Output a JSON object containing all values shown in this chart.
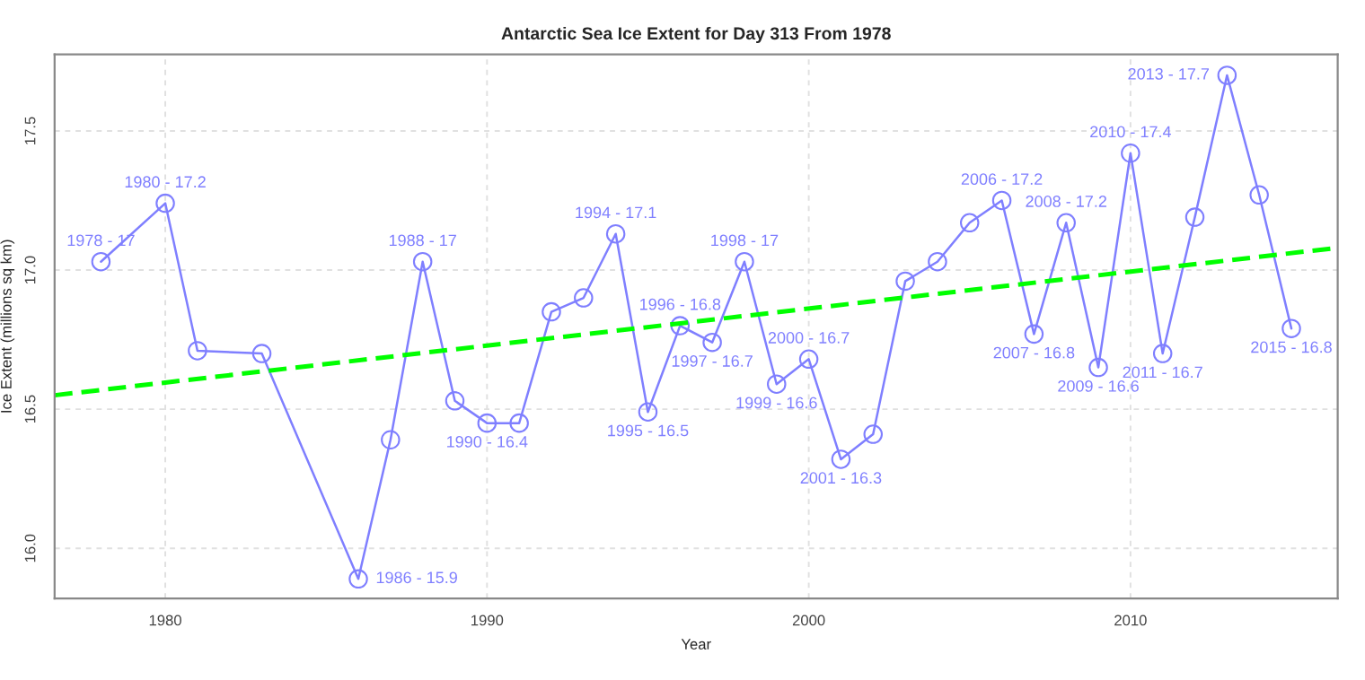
{
  "chart_data": {
    "type": "line",
    "title": "Antarctic Sea Ice Extent for Day 313 From 1978",
    "xlabel": "Year",
    "ylabel": "Ice Extent (millions sq km)",
    "xlim": [
      1976.56,
      2016.44
    ],
    "ylim": [
      15.82,
      17.775
    ],
    "xticks": [
      1980,
      1990,
      2000,
      2010
    ],
    "yticks": [
      {
        "value": 16,
        "label": "16.0"
      },
      {
        "value": 16.5,
        "label": "16.5"
      },
      {
        "value": 17,
        "label": "17.0"
      },
      {
        "value": 17.5,
        "label": "17.5"
      }
    ],
    "grid": true,
    "marker": "circle",
    "line_style": "solid",
    "series": [
      {
        "color": "#7f7fff",
        "x": [
          1978,
          1980,
          1981,
          1983,
          1986,
          1987,
          1988,
          1989,
          1990,
          1991,
          1992,
          1993,
          1994,
          1995,
          1996,
          1997,
          1998,
          1999,
          2000,
          2001,
          2002,
          2003,
          2004,
          2005,
          2006,
          2007,
          2008,
          2009,
          2010,
          2011,
          2012,
          2013,
          2014,
          2015
        ],
        "values": [
          17.03,
          17.24,
          16.71,
          16.7,
          15.89,
          16.39,
          17.03,
          16.53,
          16.45,
          16.45,
          16.85,
          16.9,
          17.13,
          16.49,
          16.8,
          16.74,
          17.03,
          16.59,
          16.68,
          16.32,
          16.41,
          16.96,
          17.03,
          17.17,
          17.25,
          16.77,
          17.17,
          16.65,
          17.42,
          16.7,
          17.19,
          17.7,
          17.27,
          16.79
        ]
      },
      {
        "type": "line",
        "color": "#00ff00",
        "line_style": "dashed",
        "marker": "none",
        "x": [
          1976.56,
          2016.44
        ],
        "values": [
          16.55,
          17.08
        ]
      }
    ],
    "annotations": [
      {
        "text": "1978 - 17",
        "x": 1978,
        "y": 17.03
      },
      {
        "text": "1980 - 17.2",
        "x": 1980,
        "y": 17.24
      },
      {
        "text": "1986 - 15.9",
        "x": 1986,
        "y": 15.89
      },
      {
        "text": "1988 - 17",
        "x": 1988,
        "y": 17.03
      },
      {
        "text": "1990 - 16.4",
        "x": 1990,
        "y": 16.45
      },
      {
        "text": "1994 - 17.1",
        "x": 1994,
        "y": 17.13
      },
      {
        "text": "1995 - 16.5",
        "x": 1995,
        "y": 16.49
      },
      {
        "text": "1996 - 16.8",
        "x": 1996,
        "y": 16.8
      },
      {
        "text": "1997 - 16.7",
        "x": 1997,
        "y": 16.74
      },
      {
        "text": "1998 - 17",
        "x": 1998,
        "y": 17.03
      },
      {
        "text": "1999 - 16.6",
        "x": 1999,
        "y": 16.59
      },
      {
        "text": "2000 - 16.7",
        "x": 2000,
        "y": 16.68
      },
      {
        "text": "2001 - 16.3",
        "x": 2001,
        "y": 16.32
      },
      {
        "text": "2006 - 17.2",
        "x": 2006,
        "y": 17.25
      },
      {
        "text": "2007 - 16.8",
        "x": 2007,
        "y": 16.77
      },
      {
        "text": "2008 - 17.2",
        "x": 2008,
        "y": 17.17
      },
      {
        "text": "2009 - 16.6",
        "x": 2009,
        "y": 16.65
      },
      {
        "text": "2010 - 17.4",
        "x": 2010,
        "y": 17.42
      },
      {
        "text": "2011 - 16.7",
        "x": 2011,
        "y": 16.7
      },
      {
        "text": "2013 - 17.7",
        "x": 2013,
        "y": 17.7
      },
      {
        "text": "2015 - 16.8",
        "x": 2015,
        "y": 16.79
      }
    ]
  }
}
